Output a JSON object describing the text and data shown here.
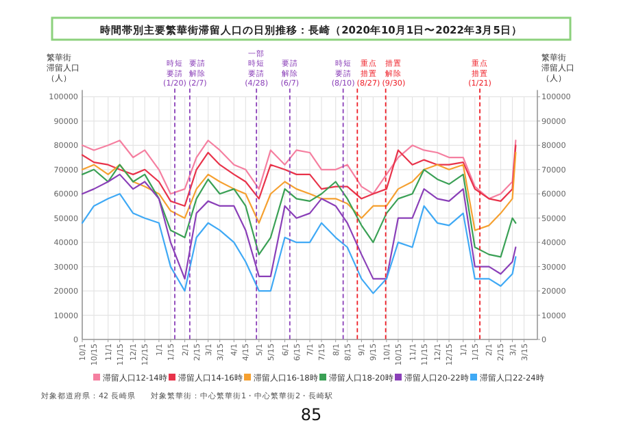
{
  "chart_data": {
    "type": "line",
    "title": "時間帯別主要繁華街滞留人口の日別推移：長崎（2020年10月1日〜2022年3月5日）",
    "ylabel": "繁華街滞留人口（人）",
    "y2label": "繁華街滞留人口（人）",
    "x": [
      "2020-10-01",
      "2020-10-15",
      "2020-11-01",
      "2020-11-15",
      "2020-12-01",
      "2020-12-15",
      "2021-01-01",
      "2021-01-15",
      "2021-02-01",
      "2021-02-15",
      "2021-03-01",
      "2021-03-15",
      "2021-04-01",
      "2021-04-15",
      "2021-05-01",
      "2021-05-15",
      "2021-06-01",
      "2021-06-15",
      "2021-07-01",
      "2021-07-15",
      "2021-08-01",
      "2021-08-15",
      "2021-09-01",
      "2021-09-15",
      "2021-10-01",
      "2021-10-15",
      "2021-11-01",
      "2021-11-15",
      "2021-12-01",
      "2021-12-15",
      "2022-01-01",
      "2022-01-15",
      "2022-02-01",
      "2022-02-15",
      "2022-03-01",
      "2022-03-05"
    ],
    "series": [
      {
        "name": "滞留人口12-14時",
        "color": "#f57fa0",
        "values": [
          80000,
          78000,
          80000,
          82000,
          75000,
          78000,
          70000,
          60000,
          62000,
          75000,
          82000,
          78000,
          72000,
          70000,
          62000,
          78000,
          72000,
          78000,
          77000,
          70000,
          70000,
          72000,
          63000,
          60000,
          68000,
          75000,
          80000,
          78000,
          77000,
          75000,
          75000,
          63000,
          58000,
          60000,
          65000,
          82000
        ]
      },
      {
        "name": "滞留人口14-16時",
        "color": "#e8334a",
        "values": [
          76000,
          73000,
          72000,
          70000,
          68000,
          70000,
          65000,
          57000,
          55000,
          70000,
          77000,
          72000,
          68000,
          65000,
          58000,
          72000,
          70000,
          68000,
          68000,
          62000,
          63000,
          63000,
          58000,
          60000,
          62000,
          78000,
          72000,
          74000,
          72000,
          72000,
          73000,
          62000,
          58000,
          57000,
          62000,
          80000
        ]
      },
      {
        "name": "滞留人口16-18時",
        "color": "#f5a030",
        "values": [
          70000,
          72000,
          68000,
          72000,
          65000,
          63000,
          60000,
          53000,
          50000,
          62000,
          68000,
          65000,
          62000,
          60000,
          48000,
          60000,
          65000,
          62000,
          60000,
          58000,
          58000,
          56000,
          50000,
          55000,
          55000,
          62000,
          65000,
          70000,
          72000,
          70000,
          72000,
          45000,
          47000,
          52000,
          58000,
          77000
        ]
      },
      {
        "name": "滞留人口18-20時",
        "color": "#3aa055",
        "values": [
          68000,
          70000,
          65000,
          72000,
          65000,
          68000,
          58000,
          45000,
          42000,
          58000,
          66000,
          60000,
          62000,
          55000,
          35000,
          42000,
          62000,
          58000,
          57000,
          60000,
          65000,
          58000,
          47000,
          40000,
          52000,
          58000,
          60000,
          70000,
          66000,
          64000,
          68000,
          38000,
          35000,
          34000,
          50000,
          48000
        ]
      },
      {
        "name": "滞留人口20-22時",
        "color": "#8a3fb8",
        "values": [
          60000,
          62000,
          65000,
          68000,
          62000,
          65000,
          58000,
          40000,
          25000,
          52000,
          57000,
          55000,
          55000,
          45000,
          26000,
          26000,
          55000,
          50000,
          52000,
          58000,
          55000,
          48000,
          35000,
          25000,
          25000,
          50000,
          50000,
          62000,
          58000,
          57000,
          62000,
          30000,
          30000,
          27000,
          32000,
          38000
        ]
      },
      {
        "name": "滞留人口22-24時",
        "color": "#3fa9f5",
        "values": [
          48000,
          55000,
          58000,
          60000,
          52000,
          50000,
          48000,
          30000,
          20000,
          42000,
          48000,
          45000,
          40000,
          32000,
          20000,
          20000,
          42000,
          40000,
          40000,
          48000,
          42000,
          38000,
          25000,
          19000,
          25000,
          40000,
          38000,
          55000,
          48000,
          47000,
          52000,
          25000,
          25000,
          22000,
          27000,
          34000
        ]
      }
    ],
    "xlim": [
      "2020-10-01",
      "2022-03-31"
    ],
    "xticks": [
      {
        "value": "2020-10-01",
        "label": "10/1"
      },
      {
        "value": "2020-10-15",
        "label": "10/15"
      },
      {
        "value": "2020-11-01",
        "label": "11/1"
      },
      {
        "value": "2020-11-15",
        "label": "11/15"
      },
      {
        "value": "2020-12-01",
        "label": "12/1"
      },
      {
        "value": "2020-12-15",
        "label": "12/15"
      },
      {
        "value": "2021-01-01",
        "label": "1/1"
      },
      {
        "value": "2021-01-15",
        "label": "1/15"
      },
      {
        "value": "2021-02-01",
        "label": "2/1"
      },
      {
        "value": "2021-02-15",
        "label": "2/15"
      },
      {
        "value": "2021-03-01",
        "label": "3/1"
      },
      {
        "value": "2021-03-15",
        "label": "3/15"
      },
      {
        "value": "2021-04-01",
        "label": "4/1"
      },
      {
        "value": "2021-04-15",
        "label": "4/15"
      },
      {
        "value": "2021-05-01",
        "label": "5/1"
      },
      {
        "value": "2021-05-15",
        "label": "5/15"
      },
      {
        "value": "2021-06-01",
        "label": "6/1"
      },
      {
        "value": "2021-06-15",
        "label": "6/15"
      },
      {
        "value": "2021-07-01",
        "label": "7/1"
      },
      {
        "value": "2021-07-15",
        "label": "7/15"
      },
      {
        "value": "2021-08-01",
        "label": "8/1"
      },
      {
        "value": "2021-08-15",
        "label": "8/15"
      },
      {
        "value": "2021-09-01",
        "label": "9/1"
      },
      {
        "value": "2021-09-15",
        "label": "9/15"
      },
      {
        "value": "2021-10-01",
        "label": "10/1"
      },
      {
        "value": "2021-10-15",
        "label": "10/15"
      },
      {
        "value": "2021-11-01",
        "label": "11/1"
      },
      {
        "value": "2021-11-15",
        "label": "11/15"
      },
      {
        "value": "2021-12-01",
        "label": "12/1"
      },
      {
        "value": "2021-12-15",
        "label": "12/15"
      },
      {
        "value": "2022-01-01",
        "label": "1/1"
      },
      {
        "value": "2022-01-15",
        "label": "1/15"
      },
      {
        "value": "2022-02-01",
        "label": "2/1"
      },
      {
        "value": "2022-02-15",
        "label": "2/15"
      },
      {
        "value": "2022-03-01",
        "label": "3/1"
      },
      {
        "value": "2022-03-15",
        "label": "3/15"
      }
    ],
    "ylim": [
      0,
      100000
    ],
    "yticks": [
      0,
      10000,
      20000,
      30000,
      40000,
      50000,
      60000,
      70000,
      80000,
      90000,
      100000
    ],
    "y2lim": [
      0,
      100000
    ],
    "y2ticks": [
      0,
      10000,
      20000,
      30000,
      40000,
      50000,
      60000,
      70000,
      80000,
      90000,
      100000
    ],
    "ref_lines": [
      {
        "axis": "x",
        "value": "2021-01-20",
        "label": "時短要請(1/20)",
        "color": "#8a3fb8",
        "line_style": "dashed"
      },
      {
        "axis": "x",
        "value": "2021-02-07",
        "label": "要請解除(2/7)",
        "color": "#8a3fb8",
        "line_style": "dashed"
      },
      {
        "axis": "x",
        "value": "2021-04-28",
        "label": "一部時短要請(4/28)",
        "color": "#8a3fb8",
        "line_style": "dashed"
      },
      {
        "axis": "x",
        "value": "2021-06-07",
        "label": "要請解除(6/7)",
        "color": "#8a3fb8",
        "line_style": "dashed"
      },
      {
        "axis": "x",
        "value": "2021-08-10",
        "label": "時短要請(8/10)",
        "color": "#8a3fb8",
        "line_style": "dashed"
      },
      {
        "axis": "x",
        "value": "2021-08-27",
        "label": "重点措置(8/27)",
        "color": "#ee1c25",
        "line_style": "dashed"
      },
      {
        "axis": "x",
        "value": "2021-09-30",
        "label": "措置解除(9/30)",
        "color": "#ee1c25",
        "line_style": "dashed"
      },
      {
        "axis": "x",
        "value": "2022-01-21",
        "label": "重点措置(1/21)",
        "color": "#ee1c25",
        "line_style": "dashed"
      }
    ],
    "grid": true,
    "legend": "bottom",
    "marker": "none",
    "line_style": "solid",
    "annotations": [
      "対象都道府県：42 長崎県",
      "対象繁華街：中心繁華街1・中心繁華街2・長崎駅",
      "85"
    ]
  }
}
